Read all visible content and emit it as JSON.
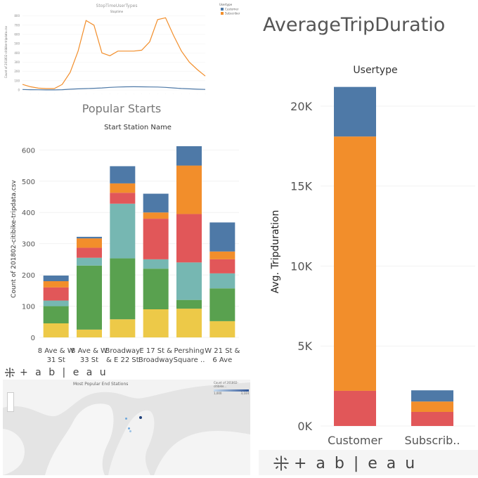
{
  "dashboard": {
    "logo_text": "+ a b | e a u",
    "logo_text_right": "+ a b | e a u"
  },
  "charts": {
    "stop_time": {
      "title": "StopTimeUserTypes",
      "subtitle": "Stoptime",
      "ylabel": "Count of 201802-citibike-tripdata.csv",
      "legend_title": "Usertype",
      "legend_items": [
        "Customer",
        "Subscriber"
      ]
    },
    "popular_starts": {
      "title": "Popular Starts",
      "header": "Start Station Name",
      "ylabel": "Count of 201802-citibike-tripdata.csv"
    },
    "avg_trip": {
      "title": "AverageTripDuratio",
      "header": "Usertype",
      "ylabel": "Avg. Tripduration"
    },
    "end_stations": {
      "title": "Most Popular End Stations",
      "legend_title": "Count of 201802-citibike...",
      "legend_min": "1,000",
      "legend_max": "3,104"
    }
  },
  "chart_data": [
    {
      "type": "line",
      "title": "StopTimeUserTypes",
      "xlabel": "Stoptime",
      "ylabel": "Count of 201802-citibike-tripdata.csv",
      "x": [
        0,
        1,
        2,
        3,
        4,
        5,
        6,
        7,
        8,
        9,
        10,
        11,
        12,
        13,
        14,
        15,
        16,
        17,
        18,
        19,
        20,
        21,
        22,
        23
      ],
      "yticks": [
        0,
        100,
        200,
        300,
        400,
        500,
        600,
        700,
        800
      ],
      "ylim": [
        0,
        820
      ],
      "series": [
        {
          "name": "Customer",
          "color": "#4e79a7",
          "values": [
            5,
            3,
            2,
            1,
            1,
            3,
            8,
            12,
            15,
            18,
            22,
            28,
            32,
            34,
            35,
            34,
            33,
            32,
            28,
            22,
            16,
            12,
            8,
            6
          ]
        },
        {
          "name": "Subscriber",
          "color": "#f28e2b",
          "values": [
            60,
            35,
            20,
            15,
            15,
            60,
            190,
            420,
            750,
            700,
            400,
            370,
            420,
            420,
            420,
            430,
            520,
            760,
            780,
            590,
            420,
            300,
            220,
            150
          ]
        }
      ],
      "legend": "top-right"
    },
    {
      "type": "bar",
      "stacked": true,
      "title": "Popular Starts",
      "xlabel": "Start Station Name",
      "ylabel": "Count of 201802-citibike-tripdata.csv",
      "categories": [
        "8 Ave & W 31 St",
        "8 Ave & W 33 St",
        "Broadway & E 22 St",
        "E 17 St & Broadway",
        "Pershing Square ..",
        "W 21 St & 6 Ave"
      ],
      "yticks": [
        0,
        100,
        200,
        300,
        400,
        500,
        600
      ],
      "ylim": [
        0,
        630
      ],
      "series": [
        {
          "color": "#edc948",
          "values": [
            45,
            25,
            58,
            90,
            92,
            52
          ]
        },
        {
          "color": "#59a14f",
          "values": [
            55,
            205,
            195,
            130,
            28,
            105
          ]
        },
        {
          "color": "#76b7b2",
          "values": [
            18,
            25,
            175,
            30,
            120,
            48
          ]
        },
        {
          "color": "#e15759",
          "values": [
            42,
            32,
            35,
            130,
            155,
            45
          ]
        },
        {
          "color": "#f28e2b",
          "values": [
            20,
            30,
            30,
            20,
            155,
            25
          ]
        },
        {
          "color": "#4e79a7",
          "values": [
            18,
            5,
            55,
            60,
            62,
            93
          ]
        }
      ]
    },
    {
      "type": "bar",
      "stacked": true,
      "title": "AverageTripDuratio",
      "xlabel": "Usertype",
      "ylabel": "Avg. Tripduration",
      "categories": [
        "Customer",
        "Subscrib.."
      ],
      "yticks": [
        0,
        5000,
        10000,
        15000,
        20000
      ],
      "ytick_labels": [
        "0K",
        "5K",
        "10K",
        "15K",
        "20K"
      ],
      "ylim": [
        0,
        21800
      ],
      "series": [
        {
          "color": "#e15759",
          "values": [
            2200,
            880
          ]
        },
        {
          "color": "#f28e2b",
          "values": [
            15900,
            650
          ]
        },
        {
          "color": "#4e79a7",
          "values": [
            3100,
            700
          ]
        }
      ]
    }
  ]
}
